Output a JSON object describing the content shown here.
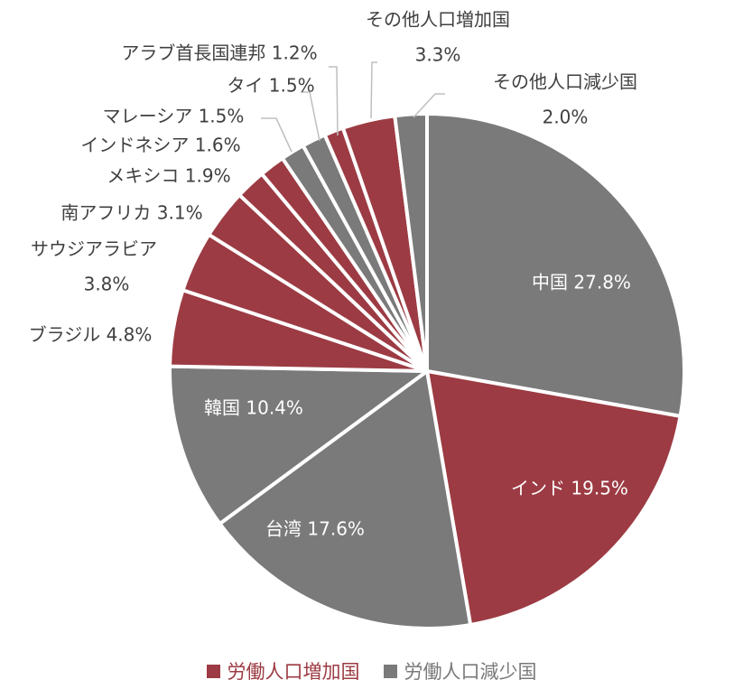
{
  "chart_data": {
    "type": "pie",
    "legend_position": "bottom",
    "slices": [
      {
        "label": "中国",
        "value": 27.8,
        "value_text": "27.8%",
        "group": "decrease"
      },
      {
        "label": "インド",
        "value": 19.5,
        "value_text": "19.5%",
        "group": "increase"
      },
      {
        "label": "台湾",
        "value": 17.6,
        "value_text": "17.6%",
        "group": "decrease"
      },
      {
        "label": "韓国",
        "value": 10.4,
        "value_text": "10.4%",
        "group": "decrease"
      },
      {
        "label": "ブラジル",
        "value": 4.8,
        "value_text": "4.8%",
        "group": "increase"
      },
      {
        "label": "サウジアラビア",
        "value": 3.8,
        "value_text": "3.8%",
        "group": "increase"
      },
      {
        "label": "南アフリカ",
        "value": 3.1,
        "value_text": "3.1%",
        "group": "increase"
      },
      {
        "label": "メキシコ",
        "value": 1.9,
        "value_text": "1.9%",
        "group": "increase"
      },
      {
        "label": "インドネシア",
        "value": 1.6,
        "value_text": "1.6%",
        "group": "increase"
      },
      {
        "label": "マレーシア",
        "value": 1.5,
        "value_text": "1.5%",
        "group": "decrease"
      },
      {
        "label": "タイ",
        "value": 1.5,
        "value_text": "1.5%",
        "group": "decrease"
      },
      {
        "label": "アラブ首長国連邦",
        "value": 1.2,
        "value_text": "1.2%",
        "group": "increase"
      },
      {
        "label": "その他人口増加国",
        "value": 3.3,
        "value_text": "3.3%",
        "group": "increase"
      },
      {
        "label": "その他人口減少国",
        "value": 2.0,
        "value_text": "2.0%",
        "group": "decrease"
      }
    ],
    "legend": [
      {
        "key": "increase",
        "name": "労働人口増加国",
        "color": "#9c3b43"
      },
      {
        "key": "decrease",
        "name": "労働人口減少国",
        "color": "#7a7a7a"
      }
    ],
    "colors": {
      "increase": "#9c3b43",
      "decrease": "#7a7a7a",
      "separator": "#ffffff",
      "label_text": "#404040",
      "inside_label_text": "#ffffff"
    }
  }
}
